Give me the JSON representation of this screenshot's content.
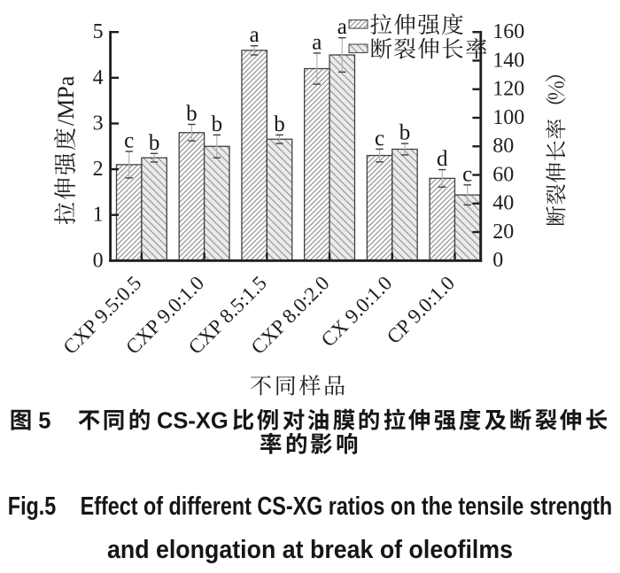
{
  "page": {
    "background": "#ffffff"
  },
  "figure": {
    "chart_data": {
      "type": "bar",
      "categories": [
        "CXP 9.5:0.5",
        "CXP 9.0:1.0",
        "CXP 8.5:1.5",
        "CXP 8.0:2.0",
        "CX 9.0:1.0",
        "CP 9.0:1.0"
      ],
      "series": [
        {
          "name": "拉伸强度",
          "axis": "left",
          "unit": "MPa",
          "values": [
            2.1,
            2.8,
            4.6,
            4.2,
            2.3,
            1.8
          ],
          "errors": [
            0.29,
            0.18,
            0.1,
            0.34,
            0.14,
            0.19
          ],
          "sig_letters": [
            "c",
            "b",
            "a",
            "a",
            "c",
            "d"
          ],
          "hatch": "forward-diagonal"
        },
        {
          "name": "断裂伸长率",
          "axis": "right",
          "unit": "%",
          "values": [
            72,
            80,
            85,
            144,
            78,
            46
          ],
          "errors": [
            3,
            8,
            3,
            12,
            4,
            7
          ],
          "sig_letters": [
            "b",
            "b",
            "b",
            "a",
            "b",
            "c"
          ],
          "hatch": "back-diagonal"
        }
      ],
      "left_axis": {
        "label": "拉伸强度/MPa",
        "min": 0,
        "max": 5,
        "tick_step": 1,
        "ticks": [
          "0",
          "1",
          "2",
          "3",
          "4",
          "5"
        ]
      },
      "right_axis": {
        "label": "断裂伸长率（%）",
        "min": 0,
        "max": 160,
        "tick_step": 20,
        "ticks": [
          "0",
          "20",
          "40",
          "60",
          "80",
          "100",
          "120",
          "140",
          "160"
        ]
      },
      "xlabel": "不同样品",
      "legend": {
        "position": "top-right",
        "entries": [
          "拉伸强度",
          "断裂伸长率"
        ]
      },
      "grid": false
    },
    "caption_cn": {
      "lines": [
        "图 5　不同的 CS-XG 比例对油膜的拉伸强度及断裂伸长",
        "率的影响"
      ]
    },
    "caption_en": {
      "lines": [
        "Fig.5　Effect of different CS-XG ratios on the tensile strength",
        "and elongation at break of oleofilms"
      ]
    }
  },
  "colors": {
    "ink": "#1d1d1d",
    "bar1_fill": "#fbfbfb",
    "bar1_hatch": "#6f6f6f",
    "bar2_fill": "#ebebeb",
    "bar2_hatch": "#8d8d8d",
    "error_line": "#b3b3b3",
    "error_cap": "#3f3f3f",
    "caption": "#161616"
  }
}
